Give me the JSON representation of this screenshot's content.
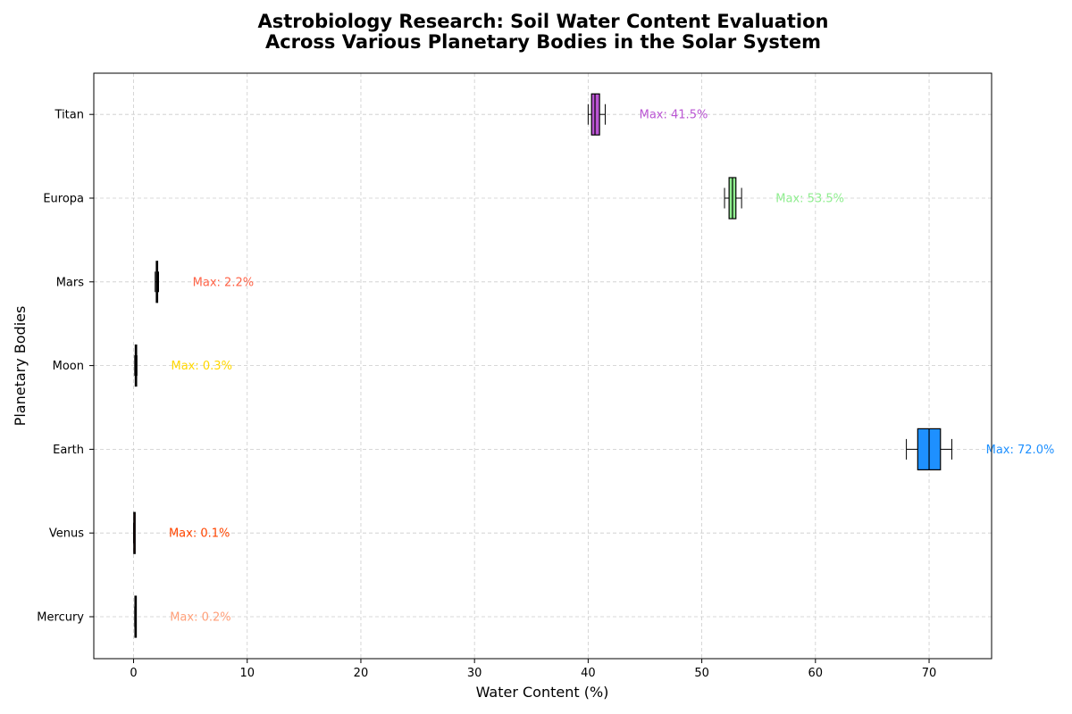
{
  "chart_data": {
    "type": "boxplot",
    "orientation": "horizontal",
    "title_lines": [
      "Astrobiology Research: Soil Water Content Evaluation",
      "Across Various Planetary Bodies in the Solar System"
    ],
    "xlabel": "Water Content (%)",
    "ylabel": "Planetary Bodies",
    "xlim": [
      -3.5,
      75.5
    ],
    "xticks": [
      0,
      10,
      20,
      30,
      40,
      50,
      60,
      70
    ],
    "grid": true,
    "categories": [
      "Mercury",
      "Venus",
      "Earth",
      "Moon",
      "Mars",
      "Europa",
      "Titan"
    ],
    "series": [
      {
        "category": "Mercury",
        "min": 0.1,
        "q1": 0.12,
        "median": 0.15,
        "q3": 0.18,
        "max": 0.2,
        "color": "#FFA07A",
        "max_label": "Max: 0.2%"
      },
      {
        "category": "Venus",
        "min": 0.0,
        "q1": 0.02,
        "median": 0.05,
        "q3": 0.08,
        "max": 0.1,
        "color": "#FF4500",
        "max_label": "Max: 0.1%"
      },
      {
        "category": "Earth",
        "min": 68.0,
        "q1": 69.0,
        "median": 70.0,
        "q3": 71.0,
        "max": 72.0,
        "color": "#1E90FF",
        "max_label": "Max: 72.0%"
      },
      {
        "category": "Moon",
        "min": 0.1,
        "q1": 0.15,
        "median": 0.2,
        "q3": 0.25,
        "max": 0.3,
        "color": "#FFD700",
        "max_label": "Max: 0.3%"
      },
      {
        "category": "Mars",
        "min": 1.9,
        "q1": 2.0,
        "median": 2.05,
        "q3": 2.1,
        "max": 2.2,
        "color": "#FF6347",
        "max_label": "Max: 2.2%"
      },
      {
        "category": "Europa",
        "min": 52.0,
        "q1": 52.4,
        "median": 52.7,
        "q3": 53.0,
        "max": 53.5,
        "color": "#90EE90",
        "max_label": "Max: 53.5%"
      },
      {
        "category": "Titan",
        "min": 40.0,
        "q1": 40.3,
        "median": 40.6,
        "q3": 41.0,
        "max": 41.5,
        "color": "#BA55D3",
        "max_label": "Max: 41.5%"
      }
    ]
  }
}
